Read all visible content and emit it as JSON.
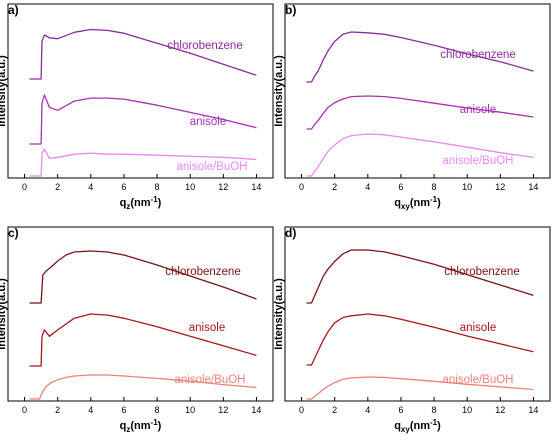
{
  "chart_data": [
    {
      "type": "line",
      "panel_label": "a)",
      "xlabel": "q",
      "xlabel_sub": "z",
      "xlabel_unit": "(nm",
      "xlabel_exp": "-1",
      "xlabel_close": ")",
      "ylabel": "Intensity(a.u.)",
      "xlim": [
        -1,
        15
      ],
      "xticks": [
        0,
        2,
        4,
        6,
        8,
        10,
        12,
        14
      ],
      "xtick_labels": [
        "0",
        "2",
        "4",
        "6",
        "8",
        "10",
        "12",
        "14"
      ],
      "ylim": [
        0,
        100
      ],
      "series": [
        {
          "name": "chlorobenzene",
          "color": "#8B2A9E",
          "x": [
            0.3,
            1.0,
            1.05,
            1.2,
            1.5,
            2.0,
            3.0,
            4.0,
            5.0,
            6.0,
            8.0,
            10.0,
            12.0,
            14.0
          ],
          "y": [
            67.5,
            67.5,
            88,
            91.5,
            90,
            89.5,
            93,
            94.5,
            94,
            92.5,
            87,
            81.5,
            75.5,
            69.5
          ]
        },
        {
          "name": "anisole",
          "color": "#A830B5",
          "x": [
            0.3,
            1.0,
            1.05,
            1.2,
            1.5,
            2.0,
            3.0,
            4.0,
            5.0,
            6.0,
            8.0,
            10.0,
            12.0,
            14.0
          ],
          "y": [
            23,
            23,
            43,
            47,
            41,
            39.5,
            44,
            45.5,
            45.5,
            45,
            42,
            38.5,
            35,
            31
          ]
        },
        {
          "name": "anisole/BuOH",
          "color": "#E88AF0",
          "x": [
            0.3,
            1.0,
            1.05,
            1.2,
            1.5,
            2.0,
            3.0,
            4.0,
            5.0,
            6.0,
            8.0,
            10.0,
            12.0,
            14.0
          ],
          "y": [
            0,
            0,
            11,
            13,
            8.5,
            9,
            10.5,
            11,
            10.5,
            10.5,
            10,
            9.5,
            9,
            8
          ]
        }
      ]
    },
    {
      "type": "line",
      "panel_label": "b)",
      "xlabel": "q",
      "xlabel_sub": "xy",
      "xlabel_unit": "(nm",
      "xlabel_exp": "-1",
      "xlabel_close": ")",
      "ylabel": "Intensity(a.u.)",
      "xlim": [
        -1,
        15
      ],
      "xticks": [
        0,
        2,
        4,
        6,
        8,
        10,
        12,
        14
      ],
      "xtick_labels": [
        "0",
        "2",
        "4",
        "6",
        "8",
        "10",
        "12",
        "14"
      ],
      "ylim": [
        0,
        100
      ],
      "series": [
        {
          "name": "chlorobenzene",
          "color": "#8B2A9E",
          "x": [
            0.3,
            0.6,
            0.8,
            1.0,
            1.3,
            1.6,
            2.0,
            2.5,
            3.0,
            4.0,
            5.0,
            6.0,
            8.0,
            10.0,
            12.0,
            14.0
          ],
          "y": [
            62,
            62,
            66,
            69,
            76,
            82,
            88,
            92.5,
            94,
            93.5,
            92.5,
            90.5,
            85.5,
            80,
            75,
            69
          ]
        },
        {
          "name": "anisole",
          "color": "#A830B5",
          "x": [
            0.3,
            0.6,
            0.8,
            1.0,
            1.3,
            1.6,
            2.0,
            2.5,
            3.0,
            4.0,
            5.0,
            6.0,
            8.0,
            10.0,
            12.0,
            14.0
          ],
          "y": [
            31,
            31,
            35,
            38,
            44,
            49,
            53,
            56,
            58,
            58.5,
            58,
            56.5,
            52.5,
            48.5,
            45,
            41
          ]
        },
        {
          "name": "anisole/BuOH",
          "color": "#E88AF0",
          "x": [
            0.3,
            0.6,
            0.8,
            1.0,
            1.3,
            1.6,
            2.0,
            2.5,
            3.0,
            4.0,
            5.0,
            6.0,
            8.0,
            10.0,
            12.0,
            14.0
          ],
          "y": [
            0,
            0,
            3,
            6,
            11,
            16,
            20,
            24,
            26,
            27,
            26.5,
            25,
            22,
            18.5,
            15,
            12
          ]
        }
      ]
    },
    {
      "type": "line",
      "panel_label": "c)",
      "xlabel": "q",
      "xlabel_sub": "z",
      "xlabel_unit": "(nm",
      "xlabel_exp": "-1",
      "xlabel_close": ")",
      "ylabel": "Intensity(a.u.)",
      "xlim": [
        -1,
        15
      ],
      "xticks": [
        0,
        2,
        4,
        6,
        8,
        10,
        12,
        14
      ],
      "xtick_labels": [
        "0",
        "2",
        "4",
        "6",
        "8",
        "10",
        "12",
        "14"
      ],
      "ylim": [
        0,
        100
      ],
      "series": [
        {
          "name": "chlorobenzene",
          "color": "#7A1216",
          "x": [
            0.3,
            1.0,
            1.1,
            1.3,
            1.6,
            2.0,
            2.5,
            3.0,
            4.0,
            5.0,
            6.0,
            8.0,
            10.0,
            12.0,
            14.0
          ],
          "y": [
            68,
            68,
            82,
            84,
            86,
            89,
            92,
            93.5,
            94,
            93.5,
            92,
            87,
            81.5,
            76,
            70
          ]
        },
        {
          "name": "anisole",
          "color": "#A8161C",
          "x": [
            0.3,
            1.0,
            1.05,
            1.2,
            1.5,
            2.0,
            3.0,
            4.0,
            5.0,
            6.0,
            8.0,
            10.0,
            12.0,
            14.0
          ],
          "y": [
            31,
            31,
            45,
            48,
            45,
            48,
            53.5,
            55.5,
            55,
            53.5,
            49.5,
            45,
            40.5,
            36
          ]
        },
        {
          "name": "anisole/BuOH",
          "color": "#EE7F7A",
          "x": [
            0.3,
            0.9,
            1.1,
            1.3,
            1.6,
            2.0,
            2.5,
            3.0,
            4.0,
            5.0,
            6.0,
            8.0,
            10.0,
            12.0,
            14.0
          ],
          "y": [
            0,
            0,
            8,
            13,
            17,
            20,
            22.5,
            24,
            25,
            25,
            24,
            21.5,
            18.5,
            15,
            12
          ]
        }
      ]
    },
    {
      "type": "line",
      "panel_label": "d)",
      "xlabel": "q",
      "xlabel_sub": "xy",
      "xlabel_unit": "(nm",
      "xlabel_exp": "-1",
      "xlabel_close": ")",
      "ylabel": "Intensity(a.u.)",
      "xlim": [
        -1,
        15
      ],
      "xticks": [
        0,
        2,
        4,
        6,
        8,
        10,
        12,
        14
      ],
      "xtick_labels": [
        "0",
        "2",
        "4",
        "6",
        "8",
        "10",
        "12",
        "14"
      ],
      "ylim": [
        0,
        100
      ],
      "series": [
        {
          "name": "chlorobenzene",
          "color": "#7A1216",
          "x": [
            0.3,
            0.6,
            0.8,
            1.0,
            1.3,
            1.6,
            2.0,
            2.5,
            3.0,
            4.0,
            5.0,
            6.0,
            8.0,
            10.0,
            12.0,
            14.0
          ],
          "y": [
            66,
            66,
            70,
            74,
            80,
            84,
            88,
            92,
            94,
            94,
            93,
            91,
            86.5,
            81,
            75.5,
            70
          ]
        },
        {
          "name": "anisole",
          "color": "#A8161C",
          "x": [
            0.3,
            0.6,
            0.8,
            1.0,
            1.3,
            1.6,
            2.0,
            2.5,
            3.0,
            4.0,
            5.0,
            6.0,
            8.0,
            10.0,
            12.0,
            14.0
          ],
          "y": [
            31,
            31,
            35,
            39,
            45,
            50,
            55,
            58,
            59,
            60,
            59,
            57,
            52.5,
            47.5,
            43,
            38.5
          ]
        },
        {
          "name": "anisole/BuOH",
          "color": "#EE7F7A",
          "x": [
            0.3,
            0.6,
            0.8,
            1.0,
            1.3,
            1.6,
            2.0,
            2.5,
            3.0,
            4.0,
            5.0,
            6.0,
            8.0,
            10.0,
            12.0,
            14.0
          ],
          "y": [
            0,
            0,
            3,
            6,
            11,
            15,
            19,
            23,
            24.5,
            25.5,
            25,
            23.5,
            20.5,
            17,
            14,
            11
          ]
        }
      ]
    }
  ]
}
